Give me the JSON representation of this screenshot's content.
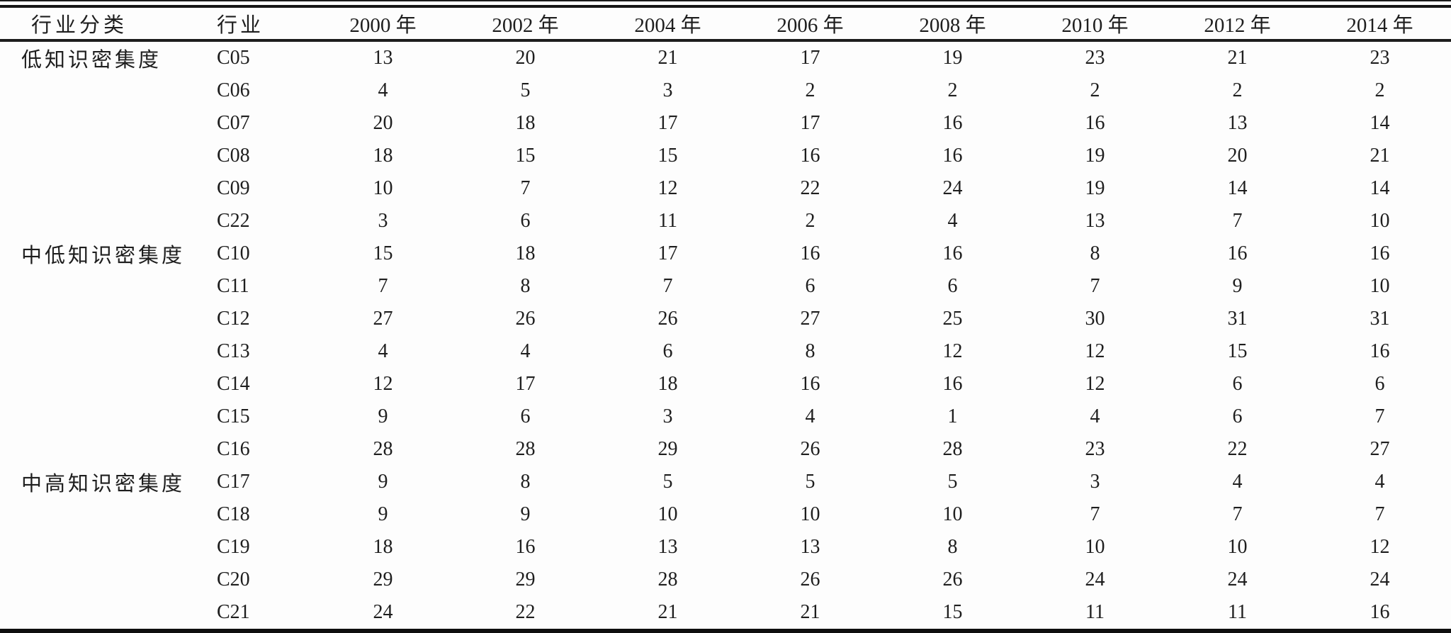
{
  "table": {
    "columns": [
      "行业分类",
      "行业",
      "2000 年",
      "2002 年",
      "2004 年",
      "2006 年",
      "2008 年",
      "2010 年",
      "2012 年",
      "2014 年"
    ],
    "groups": [
      {
        "label": "低知识密集度",
        "rows": [
          {
            "industry": "C05",
            "values": [
              13,
              20,
              21,
              17,
              19,
              23,
              21,
              23
            ]
          },
          {
            "industry": "C06",
            "values": [
              4,
              5,
              3,
              2,
              2,
              2,
              2,
              2
            ]
          },
          {
            "industry": "C07",
            "values": [
              20,
              18,
              17,
              17,
              16,
              16,
              13,
              14
            ]
          },
          {
            "industry": "C08",
            "values": [
              18,
              15,
              15,
              16,
              16,
              19,
              20,
              21
            ]
          },
          {
            "industry": "C09",
            "values": [
              10,
              7,
              12,
              22,
              24,
              19,
              14,
              14
            ]
          },
          {
            "industry": "C22",
            "values": [
              3,
              6,
              11,
              2,
              4,
              13,
              7,
              10
            ]
          }
        ]
      },
      {
        "label": "中低知识密集度",
        "rows": [
          {
            "industry": "C10",
            "values": [
              15,
              18,
              17,
              16,
              16,
              8,
              16,
              16
            ]
          },
          {
            "industry": "C11",
            "values": [
              7,
              8,
              7,
              6,
              6,
              7,
              9,
              10
            ]
          },
          {
            "industry": "C12",
            "values": [
              27,
              26,
              26,
              27,
              25,
              30,
              31,
              31
            ]
          },
          {
            "industry": "C13",
            "values": [
              4,
              4,
              6,
              8,
              12,
              12,
              15,
              16
            ]
          },
          {
            "industry": "C14",
            "values": [
              12,
              17,
              18,
              16,
              16,
              12,
              6,
              6
            ]
          },
          {
            "industry": "C15",
            "values": [
              9,
              6,
              3,
              4,
              1,
              4,
              6,
              7
            ]
          },
          {
            "industry": "C16",
            "values": [
              28,
              28,
              29,
              26,
              28,
              23,
              22,
              27
            ]
          }
        ]
      },
      {
        "label": "中高知识密集度",
        "rows": [
          {
            "industry": "C17",
            "values": [
              9,
              8,
              5,
              5,
              5,
              3,
              4,
              4
            ]
          },
          {
            "industry": "C18",
            "values": [
              9,
              9,
              10,
              10,
              10,
              7,
              7,
              7
            ]
          },
          {
            "industry": "C19",
            "values": [
              18,
              16,
              13,
              13,
              8,
              10,
              10,
              12
            ]
          },
          {
            "industry": "C20",
            "values": [
              29,
              29,
              28,
              26,
              26,
              24,
              24,
              24
            ]
          },
          {
            "industry": "C21",
            "values": [
              24,
              22,
              21,
              21,
              15,
              11,
              11,
              16
            ]
          }
        ]
      }
    ]
  },
  "chart_data": {
    "type": "table",
    "columns": [
      "行业分类",
      "行业",
      "2000 年",
      "2002 年",
      "2004 年",
      "2006 年",
      "2008 年",
      "2010 年",
      "2012 年",
      "2014 年"
    ],
    "rows": [
      [
        "低知识密集度",
        "C05",
        13,
        20,
        21,
        17,
        19,
        23,
        21,
        23
      ],
      [
        "",
        "C06",
        4,
        5,
        3,
        2,
        2,
        2,
        2,
        2
      ],
      [
        "",
        "C07",
        20,
        18,
        17,
        17,
        16,
        16,
        13,
        14
      ],
      [
        "",
        "C08",
        18,
        15,
        15,
        16,
        16,
        19,
        20,
        21
      ],
      [
        "",
        "C09",
        10,
        7,
        12,
        22,
        24,
        19,
        14,
        14
      ],
      [
        "",
        "C22",
        3,
        6,
        11,
        2,
        4,
        13,
        7,
        10
      ],
      [
        "中低知识密集度",
        "C10",
        15,
        18,
        17,
        16,
        16,
        8,
        16,
        16
      ],
      [
        "",
        "C11",
        7,
        8,
        7,
        6,
        6,
        7,
        9,
        10
      ],
      [
        "",
        "C12",
        27,
        26,
        26,
        27,
        25,
        30,
        31,
        31
      ],
      [
        "",
        "C13",
        4,
        4,
        6,
        8,
        12,
        12,
        15,
        16
      ],
      [
        "",
        "C14",
        12,
        17,
        18,
        16,
        16,
        12,
        6,
        6
      ],
      [
        "",
        "C15",
        9,
        6,
        3,
        4,
        1,
        4,
        6,
        7
      ],
      [
        "",
        "C16",
        28,
        28,
        29,
        26,
        28,
        23,
        22,
        27
      ],
      [
        "中高知识密集度",
        "C17",
        9,
        8,
        5,
        5,
        5,
        3,
        4,
        4
      ],
      [
        "",
        "C18",
        9,
        9,
        10,
        10,
        10,
        7,
        7,
        7
      ],
      [
        "",
        "C19",
        18,
        16,
        13,
        13,
        8,
        10,
        10,
        12
      ],
      [
        "",
        "C20",
        29,
        29,
        28,
        26,
        26,
        24,
        24,
        24
      ],
      [
        "",
        "C21",
        24,
        22,
        21,
        21,
        15,
        11,
        11,
        16
      ]
    ]
  }
}
